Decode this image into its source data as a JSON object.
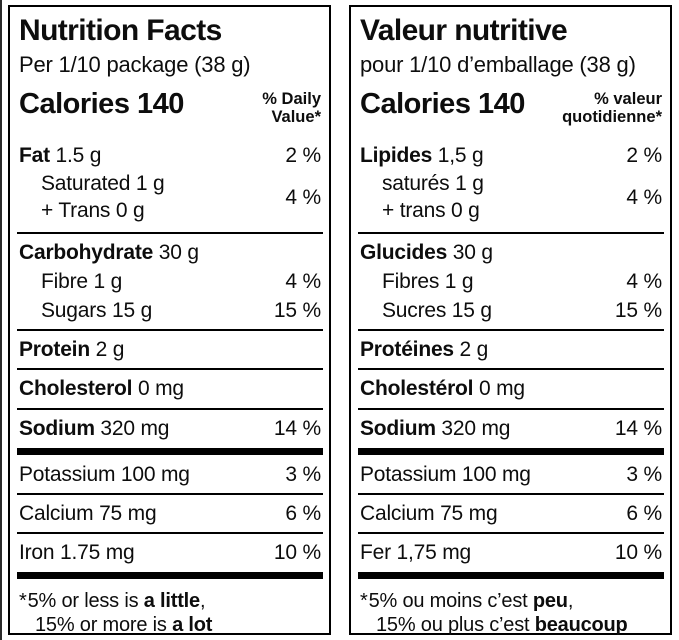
{
  "colors": {
    "ink": "#0d0d0d",
    "background": "#ffffff",
    "border": "#000000"
  },
  "panels": [
    {
      "id": "en",
      "title": "Nutrition Facts",
      "serving": "Per 1/10 package (38 g)",
      "calories_label": "Calories",
      "calories_value": "140",
      "dv_lines": [
        "% Daily",
        "Value*"
      ],
      "rows": [
        {
          "type": "nutrient",
          "bold": "Fat",
          "rest": " 1.5 g",
          "value": "2 %"
        },
        {
          "type": "group2",
          "lines": [
            "Saturated 1 g",
            "+ Trans 0 g"
          ],
          "value": "4 %"
        },
        {
          "type": "rule"
        },
        {
          "type": "nutrient",
          "bold": "Carbohydrate",
          "rest": " 30 g",
          "value": ""
        },
        {
          "type": "sub",
          "text": "Fibre 1 g",
          "value": "4 %"
        },
        {
          "type": "sub",
          "text": "Sugars 15 g",
          "value": "15 %"
        },
        {
          "type": "rule"
        },
        {
          "type": "nutrient",
          "bold": "Protein",
          "rest": " 2 g",
          "value": ""
        },
        {
          "type": "rule"
        },
        {
          "type": "nutrient",
          "bold": "Cholesterol",
          "rest": " 0 mg",
          "value": ""
        },
        {
          "type": "rule"
        },
        {
          "type": "nutrient",
          "bold": "Sodium",
          "rest": " 320 mg",
          "value": "14 %"
        },
        {
          "type": "bar"
        },
        {
          "type": "plain",
          "text": "Potassium 100 mg",
          "value": "3 %"
        },
        {
          "type": "rule"
        },
        {
          "type": "plain",
          "text": "Calcium 75 mg",
          "value": "6 %"
        },
        {
          "type": "rule"
        },
        {
          "type": "plain",
          "text": "Iron 1.75 mg",
          "value": "10 %"
        },
        {
          "type": "bar"
        }
      ],
      "footnote": {
        "asterisk": "*",
        "lines": [
          [
            {
              "t": "5% or less is "
            },
            {
              "t": "a little",
              "b": true
            },
            {
              "t": ","
            }
          ],
          [
            {
              "t": "15% or more is "
            },
            {
              "t": "a lot",
              "b": true
            }
          ]
        ]
      }
    },
    {
      "id": "fr",
      "title": "Valeur nutritive",
      "serving": "pour 1/10 d’emballage (38 g)",
      "calories_label": "Calories",
      "calories_value": "140",
      "dv_lines": [
        "% valeur",
        "quotidienne*"
      ],
      "rows": [
        {
          "type": "nutrient",
          "bold": "Lipides",
          "rest": " 1,5 g",
          "value": "2 %"
        },
        {
          "type": "group2",
          "lines": [
            "saturés 1 g",
            "+ trans 0 g"
          ],
          "value": "4 %"
        },
        {
          "type": "rule"
        },
        {
          "type": "nutrient",
          "bold": "Glucides",
          "rest": " 30 g",
          "value": ""
        },
        {
          "type": "sub",
          "text": "Fibres 1 g",
          "value": "4 %"
        },
        {
          "type": "sub",
          "text": "Sucres 15 g",
          "value": "15 %"
        },
        {
          "type": "rule"
        },
        {
          "type": "nutrient",
          "bold": "Protéines",
          "rest": " 2 g",
          "value": ""
        },
        {
          "type": "rule"
        },
        {
          "type": "nutrient",
          "bold": "Cholestérol",
          "rest": " 0 mg",
          "value": ""
        },
        {
          "type": "rule"
        },
        {
          "type": "nutrient",
          "bold": "Sodium",
          "rest": " 320 mg",
          "value": "14 %"
        },
        {
          "type": "bar"
        },
        {
          "type": "plain",
          "text": "Potassium 100 mg",
          "value": "3 %"
        },
        {
          "type": "rule"
        },
        {
          "type": "plain",
          "text": "Calcium 75 mg",
          "value": "6 %"
        },
        {
          "type": "rule"
        },
        {
          "type": "plain",
          "text": "Fer 1,75 mg",
          "value": "10 %"
        },
        {
          "type": "bar"
        }
      ],
      "footnote": {
        "asterisk": "*",
        "lines": [
          [
            {
              "t": "5% ou moins c’est "
            },
            {
              "t": "peu",
              "b": true
            },
            {
              "t": ","
            }
          ],
          [
            {
              "t": "15% ou plus c’est "
            },
            {
              "t": "beaucoup",
              "b": true
            }
          ]
        ]
      }
    }
  ]
}
